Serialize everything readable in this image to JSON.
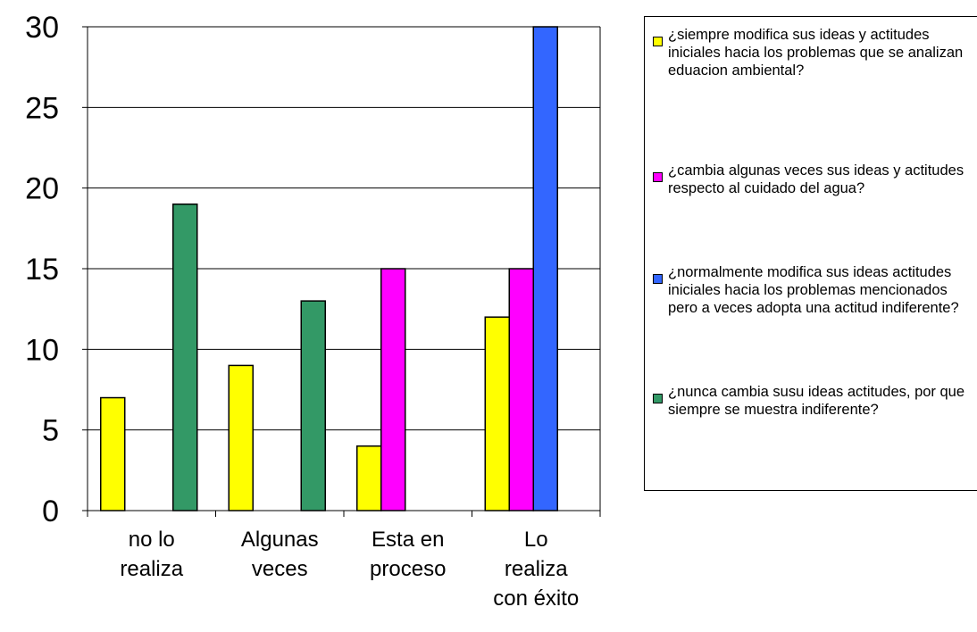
{
  "chart_data": {
    "type": "bar",
    "categories": [
      [
        "no lo",
        "realiza"
      ],
      [
        "Algunas",
        "veces"
      ],
      [
        "Esta en",
        "proceso"
      ],
      [
        "Lo",
        "realiza",
        "con éxito"
      ]
    ],
    "series": [
      {
        "name": "¿siempre modifica sus ideas y actitudes iniciales hacia los problemas que se analizan eduacion ambiental?",
        "color": "#ffff00",
        "values": [
          7,
          9,
          4,
          12
        ]
      },
      {
        "name": "¿cambia algunas veces sus ideas y actitudes respecto al cuidado del agua?",
        "color": "#ff00ff",
        "values": [
          null,
          null,
          15,
          15
        ]
      },
      {
        "name": "¿normalmente modifica sus ideas actitudes iniciales hacia los problemas mencionados pero a veces adopta una actitud indiferente?",
        "color": "#3366ff",
        "values": [
          null,
          null,
          null,
          30
        ]
      },
      {
        "name": "¿nunca cambia susu ideas actitudes, por que siempre se muestra indiferente?",
        "color": "#339966",
        "values": [
          19,
          13,
          null,
          null
        ]
      }
    ],
    "yticks": [
      0,
      5,
      10,
      15,
      20,
      25,
      30
    ],
    "ylim": [
      0,
      30
    ],
    "grid": true,
    "legend_position": "right",
    "title": "",
    "xlabel": "",
    "ylabel": ""
  }
}
